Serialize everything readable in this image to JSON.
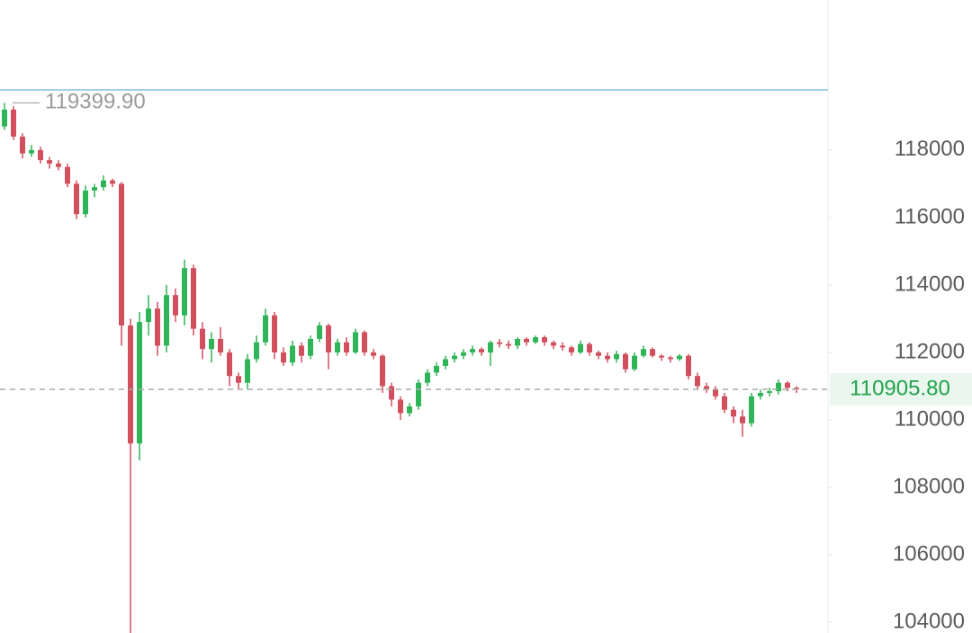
{
  "chart_data": {
    "type": "candlestick",
    "ylim": [
      103680,
      122450
    ],
    "yticks": [
      104000,
      106000,
      108000,
      110000,
      112000,
      114000,
      116000,
      118000
    ],
    "up_color": "#2fb457",
    "down_color": "#d24f5e",
    "high_marker": {
      "value": 119399.9,
      "label": "119399.90"
    },
    "last_price": {
      "value": 110905.8,
      "label": "110905.80"
    },
    "open": [
      118700,
      119200,
      118400,
      117900,
      118000,
      117700,
      117600,
      117500,
      117000,
      116100,
      116800,
      116900,
      117100,
      117000,
      112800,
      109300,
      112900,
      113300,
      112200,
      113700,
      113100,
      114500,
      112700,
      112100,
      112400,
      112000,
      111300,
      111100,
      111800,
      112300,
      113100,
      112000,
      111700,
      112200,
      111900,
      112400,
      112800,
      112000,
      112300,
      112000,
      112600,
      112000,
      111900,
      111000,
      110600,
      110200,
      110400,
      111100,
      111400,
      111600,
      111800,
      111900,
      112000,
      112100,
      112000,
      112300,
      112250,
      112200,
      112400,
      112300,
      112450,
      112300,
      112200,
      112150,
      112000,
      112250,
      112000,
      111900,
      111800,
      111950,
      111500,
      111900,
      112100,
      111900,
      111850,
      111800,
      111900,
      111300,
      111000,
      110900,
      110700,
      110300,
      110100,
      109900,
      110700,
      110800,
      110850,
      111100,
      110950
    ],
    "high": [
      119400,
      119300,
      118500,
      118150,
      118100,
      117800,
      117700,
      117600,
      117100,
      116950,
      117000,
      117250,
      117150,
      117050,
      113000,
      113200,
      113700,
      113500,
      114000,
      113900,
      114750,
      114600,
      112900,
      112600,
      112750,
      112100,
      111400,
      111950,
      112500,
      113300,
      113200,
      112150,
      112350,
      112300,
      112500,
      112900,
      112850,
      112400,
      112450,
      112700,
      112650,
      112100,
      111950,
      111100,
      110700,
      110500,
      111200,
      111500,
      111700,
      111900,
      112000,
      112100,
      112200,
      112150,
      112350,
      112400,
      112350,
      112450,
      112450,
      112500,
      112500,
      112350,
      112300,
      112200,
      112350,
      112300,
      112050,
      112000,
      112050,
      112000,
      112000,
      112200,
      112150,
      111950,
      111900,
      111950,
      111950,
      111400,
      111100,
      111000,
      110800,
      110400,
      110300,
      110800,
      110900,
      110950,
      111200,
      111150,
      111000
    ],
    "low": [
      118600,
      118300,
      117750,
      117800,
      117600,
      117450,
      117400,
      116900,
      115950,
      116000,
      116600,
      116800,
      116900,
      112200,
      103680,
      108800,
      112500,
      111900,
      112000,
      112900,
      112800,
      112500,
      111800,
      111700,
      111900,
      111000,
      110900,
      110900,
      111700,
      112200,
      111800,
      111600,
      111600,
      111700,
      111800,
      112300,
      111500,
      111900,
      111900,
      111950,
      111900,
      111800,
      110800,
      110400,
      110000,
      110100,
      110300,
      111000,
      111300,
      111500,
      111700,
      111800,
      111900,
      111900,
      111600,
      112150,
      112100,
      112100,
      112200,
      112250,
      112200,
      112100,
      112050,
      111900,
      111950,
      111900,
      111800,
      111700,
      111700,
      111400,
      111450,
      111850,
      111850,
      111750,
      111700,
      111750,
      111200,
      110900,
      110800,
      110600,
      110200,
      109900,
      109500,
      109800,
      110600,
      110700,
      110750,
      110850,
      110800
    ],
    "close": [
      119200,
      118400,
      117900,
      118000,
      117700,
      117600,
      117500,
      117000,
      116100,
      116800,
      116900,
      117100,
      117000,
      112800,
      109300,
      112900,
      113300,
      112200,
      113700,
      113100,
      114500,
      112700,
      112100,
      112400,
      112000,
      111300,
      111100,
      111800,
      112300,
      113100,
      112000,
      111700,
      112200,
      111900,
      112400,
      112800,
      112000,
      112300,
      112000,
      112600,
      112000,
      111900,
      111000,
      110600,
      110200,
      110400,
      111100,
      111400,
      111600,
      111800,
      111900,
      112000,
      112100,
      112000,
      112300,
      112250,
      112200,
      112400,
      112300,
      112450,
      112300,
      112200,
      112150,
      112000,
      112250,
      112000,
      111900,
      111800,
      111950,
      111500,
      111900,
      112100,
      111900,
      111850,
      111800,
      111900,
      111300,
      111000,
      110900,
      110700,
      110300,
      110100,
      109900,
      110700,
      110800,
      110850,
      111100,
      110950,
      110905.8
    ]
  }
}
